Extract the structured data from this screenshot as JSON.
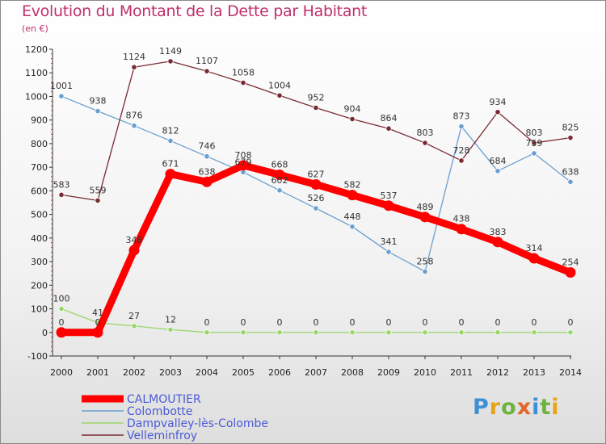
{
  "header": {
    "title": "Evolution du Montant de la Dette par Habitant",
    "subtitle": "(en €)"
  },
  "brand": {
    "letters": [
      "P",
      "r",
      "o",
      "x",
      "i",
      "t",
      "i"
    ],
    "colors": [
      "#3d8fd6",
      "#e8a317",
      "#6cb33f",
      "#e2672a",
      "#3d8fd6",
      "#6cb33f",
      "#e8a317"
    ]
  },
  "chart_data": {
    "type": "line",
    "title": "Evolution du Montant de la Dette par Habitant",
    "subtitle": "(en €)",
    "xlabel": "",
    "ylabel": "",
    "x": [
      "2000",
      "2001",
      "2002",
      "2003",
      "2004",
      "2005",
      "2006",
      "2007",
      "2008",
      "2009",
      "2010",
      "2011",
      "2012",
      "2013",
      "2014"
    ],
    "ylim": [
      -100,
      1200
    ],
    "yticks": [
      -100,
      0,
      100,
      200,
      300,
      400,
      500,
      600,
      700,
      800,
      900,
      1000,
      1100,
      1200
    ],
    "grid": false,
    "legend_position": "bottom-left",
    "series": [
      {
        "name": "CALMOUTIER",
        "color": "#ff0000",
        "values": [
          0,
          0,
          348,
          671,
          638,
          708,
          668,
          627,
          582,
          537,
          489,
          438,
          383,
          314,
          254
        ]
      },
      {
        "name": "Colombotte",
        "color": "#6a9fd0",
        "values": [
          1001,
          938,
          876,
          812,
          746,
          679,
          602,
          526,
          448,
          341,
          258,
          873,
          684,
          759,
          638
        ]
      },
      {
        "name": "Dampvalley-lès-Colombe",
        "color": "#9ad66a",
        "values": [
          100,
          41,
          27,
          12,
          0,
          0,
          0,
          0,
          0,
          0,
          0,
          0,
          0,
          0,
          0
        ]
      },
      {
        "name": "Velleminfroy",
        "color": "#7a2a32",
        "values": [
          583,
          559,
          1124,
          1149,
          1107,
          1058,
          1004,
          952,
          904,
          864,
          803,
          728,
          934,
          803,
          825
        ]
      }
    ]
  }
}
